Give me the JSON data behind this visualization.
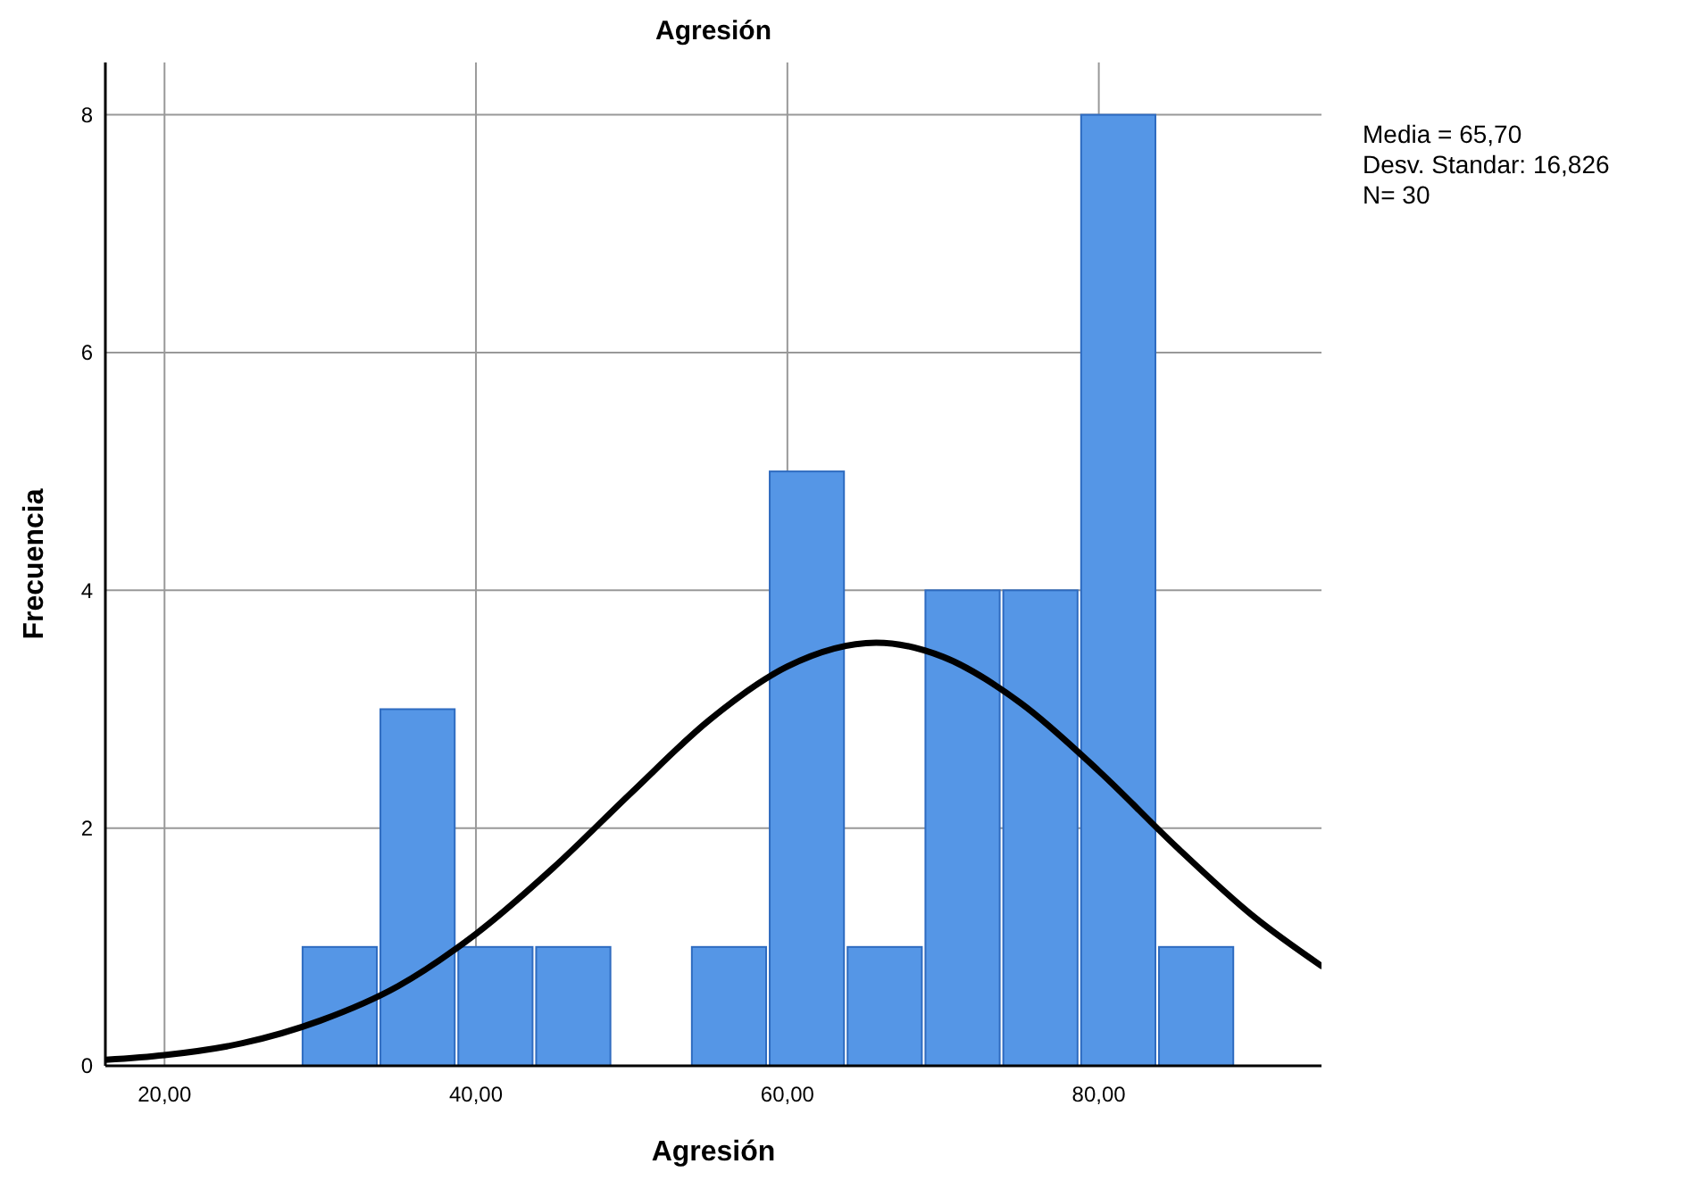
{
  "chart_data": {
    "type": "histogram",
    "title": "Agresión",
    "xlabel": "Agresión",
    "ylabel": "Frecuencia",
    "bins": [
      28.75,
      33.75,
      38.75,
      43.75,
      48.75,
      53.75,
      58.75,
      63.75,
      68.75,
      73.75,
      78.75,
      83.75,
      88.75
    ],
    "values": [
      1,
      3,
      1,
      1,
      0,
      1,
      5,
      1,
      4,
      4,
      8,
      1
    ],
    "color": "#5596e6",
    "series": [
      {
        "type": "line",
        "color": "#000000",
        "x": [
          16.2,
          20,
          25,
          30,
          35,
          40,
          45,
          50,
          55,
          60,
          65.7,
          70,
          75,
          80,
          85,
          90,
          94.3
        ],
        "values": [
          0.05,
          0.09,
          0.19,
          0.38,
          0.67,
          1.11,
          1.67,
          2.3,
          2.91,
          3.36,
          3.56,
          3.44,
          3.05,
          2.48,
          1.84,
          1.25,
          0.84
        ]
      }
    ],
    "xlim": [
      16.2,
      94.3
    ],
    "ylim": [
      0,
      8.44
    ],
    "xticks": [
      {
        "value": 20,
        "label": "20,00"
      },
      {
        "value": 40,
        "label": "40,00"
      },
      {
        "value": 60,
        "label": "60,00"
      },
      {
        "value": 80,
        "label": "80,00"
      }
    ],
    "yticks": [
      0,
      2,
      4,
      6,
      8
    ],
    "grid": true,
    "annotations": [
      "Media = 65,70",
      "Desv. Standar: 16,826",
      "N= 30"
    ]
  }
}
